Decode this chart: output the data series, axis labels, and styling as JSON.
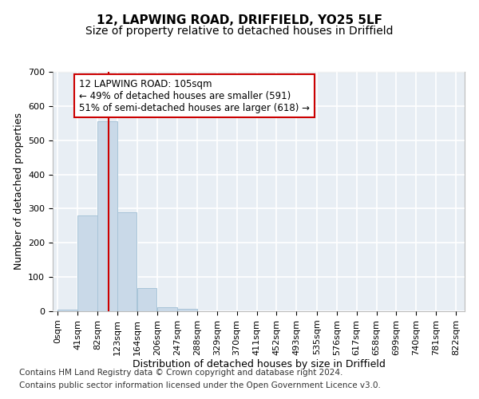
{
  "title1": "12, LAPWING ROAD, DRIFFIELD, YO25 5LF",
  "title2": "Size of property relative to detached houses in Driffield",
  "xlabel": "Distribution of detached houses by size in Driffield",
  "ylabel": "Number of detached properties",
  "footer1": "Contains HM Land Registry data © Crown copyright and database right 2024.",
  "footer2": "Contains public sector information licensed under the Open Government Licence v3.0.",
  "bin_edges": [
    0,
    41,
    82,
    123,
    164,
    206,
    247,
    288,
    329,
    370,
    411,
    452,
    493,
    535,
    576,
    617,
    658,
    699,
    740,
    781,
    822
  ],
  "bar_heights": [
    5,
    280,
    555,
    290,
    68,
    12,
    6,
    0,
    0,
    0,
    0,
    0,
    0,
    0,
    0,
    0,
    0,
    0,
    0,
    0
  ],
  "bar_color": "#c9d9e8",
  "bar_edgecolor": "#a8c4d8",
  "vline_x": 105,
  "vline_color": "#cc0000",
  "annotation_text": "12 LAPWING ROAD: 105sqm\n← 49% of detached houses are smaller (591)\n51% of semi-detached houses are larger (618) →",
  "annotation_box_color": "white",
  "annotation_box_edgecolor": "#cc0000",
  "ylim": [
    0,
    700
  ],
  "xlim_min": -10,
  "xlim_max": 840,
  "yticks": [
    0,
    100,
    200,
    300,
    400,
    500,
    600,
    700
  ],
  "xtick_labels": [
    "0sqm",
    "41sqm",
    "82sqm",
    "123sqm",
    "164sqm",
    "206sqm",
    "247sqm",
    "288sqm",
    "329sqm",
    "370sqm",
    "411sqm",
    "452sqm",
    "493sqm",
    "535sqm",
    "576sqm",
    "617sqm",
    "658sqm",
    "699sqm",
    "740sqm",
    "781sqm",
    "822sqm"
  ],
  "xtick_positions": [
    0,
    41,
    82,
    123,
    164,
    206,
    247,
    288,
    329,
    370,
    411,
    452,
    493,
    535,
    576,
    617,
    658,
    699,
    740,
    781,
    822
  ],
  "background_color": "#e8eef4",
  "grid_color": "white",
  "title1_fontsize": 11,
  "title2_fontsize": 10,
  "annotation_fontsize": 8.5,
  "xlabel_fontsize": 9,
  "ylabel_fontsize": 9,
  "tick_fontsize": 8,
  "footer_fontsize": 7.5
}
